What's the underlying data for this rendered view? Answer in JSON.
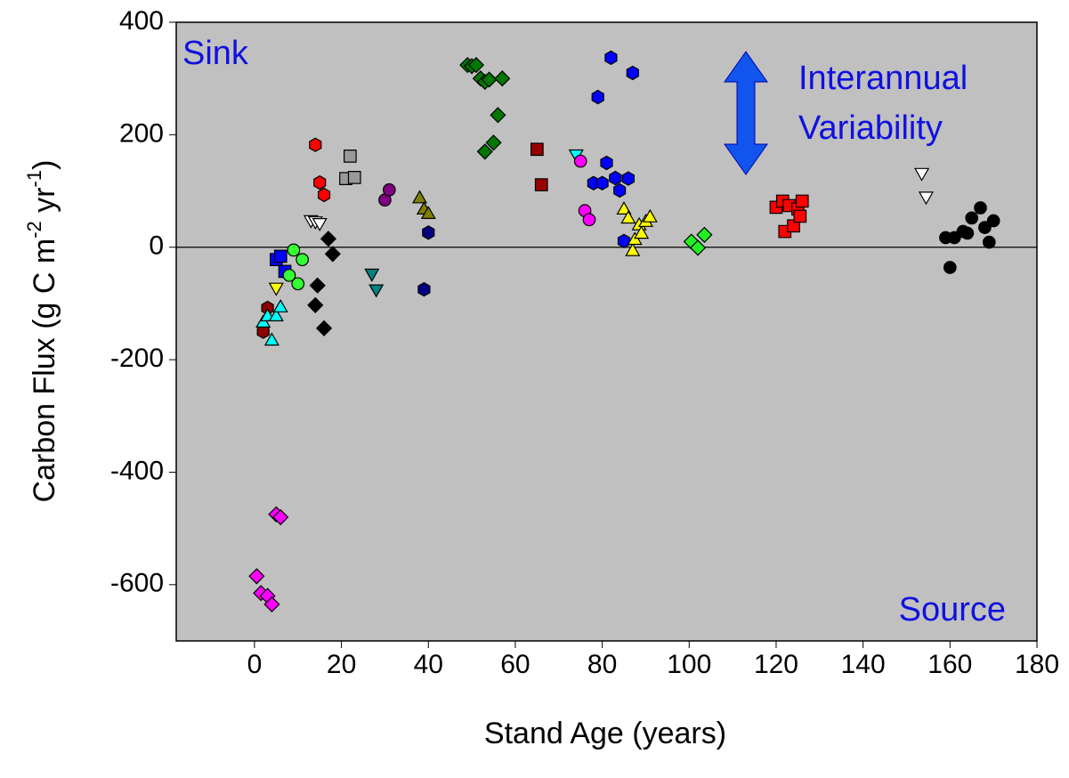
{
  "chart_data": {
    "type": "scatter",
    "xlabel": "Stand Age (years)",
    "ylabel_parts": [
      "Carbon Flux (g C m",
      "-2",
      " yr",
      "-1",
      ")"
    ],
    "annotations": {
      "sink": "Sink",
      "source": "Source",
      "variability": [
        "Interannual",
        "Variability"
      ]
    },
    "xlim": [
      -18,
      180
    ],
    "ylim": [
      -700,
      400
    ],
    "xticks": [
      0,
      20,
      40,
      60,
      80,
      100,
      120,
      140,
      160,
      180
    ],
    "yticks": [
      -600,
      -400,
      -200,
      0,
      200,
      400
    ],
    "reference_line": 0,
    "background": "#c0c0c0",
    "series": [
      {
        "marker": "diamond",
        "color": "#ff00ff",
        "x": [
          0.5,
          1.5,
          3,
          4,
          5,
          6
        ],
        "y": [
          -585,
          -615,
          -620,
          -635,
          -475,
          -480
        ]
      },
      {
        "marker": "hexagon",
        "color": "#8b0000",
        "x": [
          2,
          3
        ],
        "y": [
          -150,
          -108
        ]
      },
      {
        "marker": "triangle-up",
        "color": "#00ffff",
        "x": [
          2,
          3,
          4,
          5,
          6
        ],
        "y": [
          -133,
          -122,
          -165,
          -122,
          -106
        ]
      },
      {
        "marker": "square",
        "color": "#0000ff",
        "x": [
          5,
          6,
          7
        ],
        "y": [
          -22,
          -16,
          -43
        ]
      },
      {
        "marker": "triangle-down",
        "color": "#ffff00",
        "x": [
          5
        ],
        "y": [
          -73
        ]
      },
      {
        "marker": "circle",
        "color": "#33ff33",
        "x": [
          8,
          9,
          10,
          11
        ],
        "y": [
          -50,
          -5,
          -65,
          -22
        ]
      },
      {
        "marker": "hexagon",
        "color": "#ff0000",
        "x": [
          14,
          15,
          16
        ],
        "y": [
          182,
          115,
          93
        ]
      },
      {
        "marker": "triangle-down",
        "color": "#ffffff",
        "x": [
          13,
          14,
          15
        ],
        "y": [
          47,
          45,
          42
        ]
      },
      {
        "marker": "diamond",
        "color": "#000000",
        "x": [
          14,
          14.5,
          16,
          17,
          18
        ],
        "y": [
          -103,
          -68,
          -144,
          15,
          -12
        ]
      },
      {
        "marker": "square",
        "color": "#999999",
        "x": [
          21,
          22,
          23
        ],
        "y": [
          122,
          162,
          124
        ]
      },
      {
        "marker": "circle",
        "color": "#800080",
        "x": [
          30,
          31
        ],
        "y": [
          84,
          102
        ]
      },
      {
        "marker": "triangle-down",
        "color": "#008080",
        "x": [
          27,
          28
        ],
        "y": [
          -48,
          -76
        ]
      },
      {
        "marker": "triangle-up",
        "color": "#808000",
        "x": [
          38,
          39,
          40
        ],
        "y": [
          88,
          68,
          60
        ]
      },
      {
        "marker": "hexagon",
        "color": "#000080",
        "x": [
          40,
          39
        ],
        "y": [
          26,
          -75
        ]
      },
      {
        "marker": "diamond",
        "color": "#007700",
        "x": [
          49,
          50,
          51,
          52,
          53,
          54,
          57,
          56,
          55,
          53
        ],
        "y": [
          324,
          322,
          324,
          300,
          294,
          298,
          300,
          235,
          186,
          170
        ]
      },
      {
        "marker": "square",
        "color": "#990000",
        "x": [
          65,
          66
        ],
        "y": [
          174,
          111
        ]
      },
      {
        "marker": "triangle-down",
        "color": "#00ffff",
        "x": [
          74
        ],
        "y": [
          164
        ]
      },
      {
        "marker": "circle",
        "color": "#ff00ff",
        "x": [
          75,
          76,
          77
        ],
        "y": [
          153,
          65,
          49
        ]
      },
      {
        "marker": "hexagon",
        "color": "#0000ff",
        "x": [
          82,
          79,
          87,
          81,
          78,
          80,
          83,
          84,
          86,
          85
        ],
        "y": [
          337,
          267,
          310,
          150,
          114,
          114,
          123,
          101,
          122,
          11
        ]
      },
      {
        "marker": "triangle-up",
        "color": "#ffff00",
        "x": [
          85,
          86,
          87,
          87.5,
          88.5,
          89,
          90,
          91
        ],
        "y": [
          68,
          52,
          -6,
          14,
          40,
          25,
          46,
          54
        ]
      },
      {
        "marker": "diamond",
        "color": "#22ee22",
        "x": [
          100.5,
          102,
          103.5
        ],
        "y": [
          10,
          -1,
          22
        ]
      },
      {
        "marker": "square",
        "color": "#ff0000",
        "x": [
          120,
          121.5,
          122,
          123,
          124,
          125,
          125.5,
          126
        ],
        "y": [
          71,
          82,
          28,
          74,
          38,
          68,
          55,
          82
        ]
      },
      {
        "marker": "triangle-down",
        "color": "#ffffff",
        "x": [
          153.5,
          154.5
        ],
        "y": [
          131,
          89
        ]
      },
      {
        "marker": "circle",
        "color": "#000000",
        "x": [
          159,
          160,
          161,
          163,
          164,
          165,
          167,
          168,
          169,
          170
        ],
        "y": [
          17,
          -36,
          17,
          28,
          25,
          52,
          70,
          35,
          9,
          47
        ]
      }
    ]
  }
}
